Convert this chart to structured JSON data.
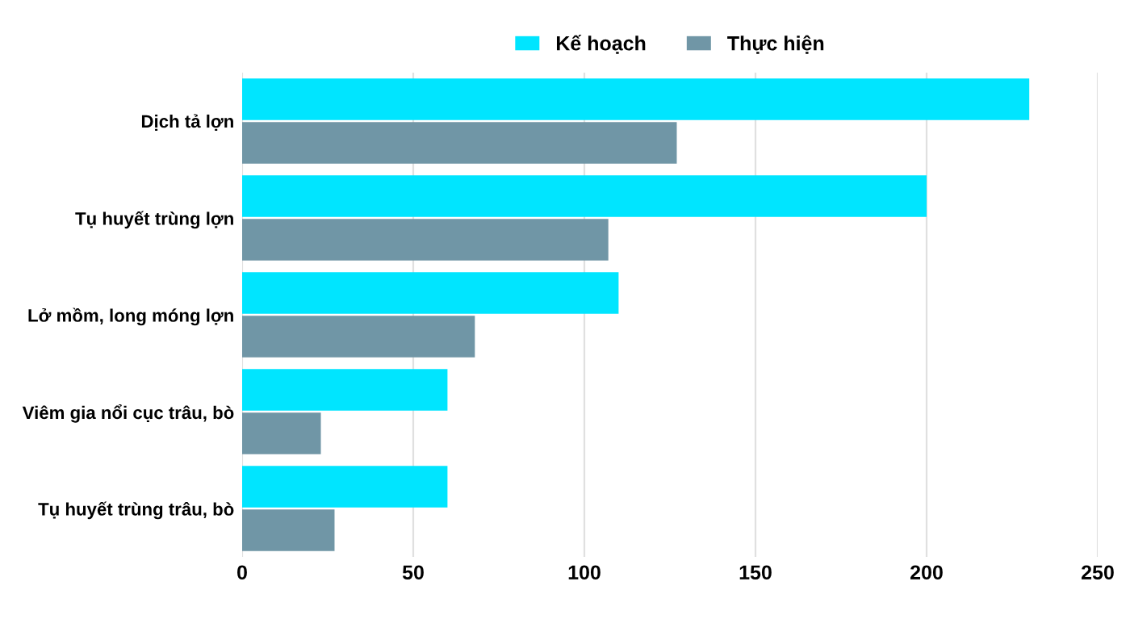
{
  "chart_data": {
    "type": "bar",
    "orientation": "horizontal",
    "categories": [
      "Dịch tả lợn",
      "Tụ huyết trùng lợn",
      "Lở mồm, long móng lợn",
      "Viêm gia nổi cục trâu, bò",
      "Tụ huyết trùng trâu, bò"
    ],
    "series": [
      {
        "name": "Kế hoạch",
        "color": "#00e5ff",
        "values": [
          230,
          200,
          110,
          60,
          60
        ]
      },
      {
        "name": "Thực hiện",
        "color": "#7096a6",
        "values": [
          127,
          107,
          68,
          23,
          27
        ]
      }
    ],
    "xlim": [
      0,
      250
    ],
    "xticks": [
      0,
      50,
      100,
      150,
      200,
      250
    ],
    "grid": "x",
    "legend": "top"
  }
}
